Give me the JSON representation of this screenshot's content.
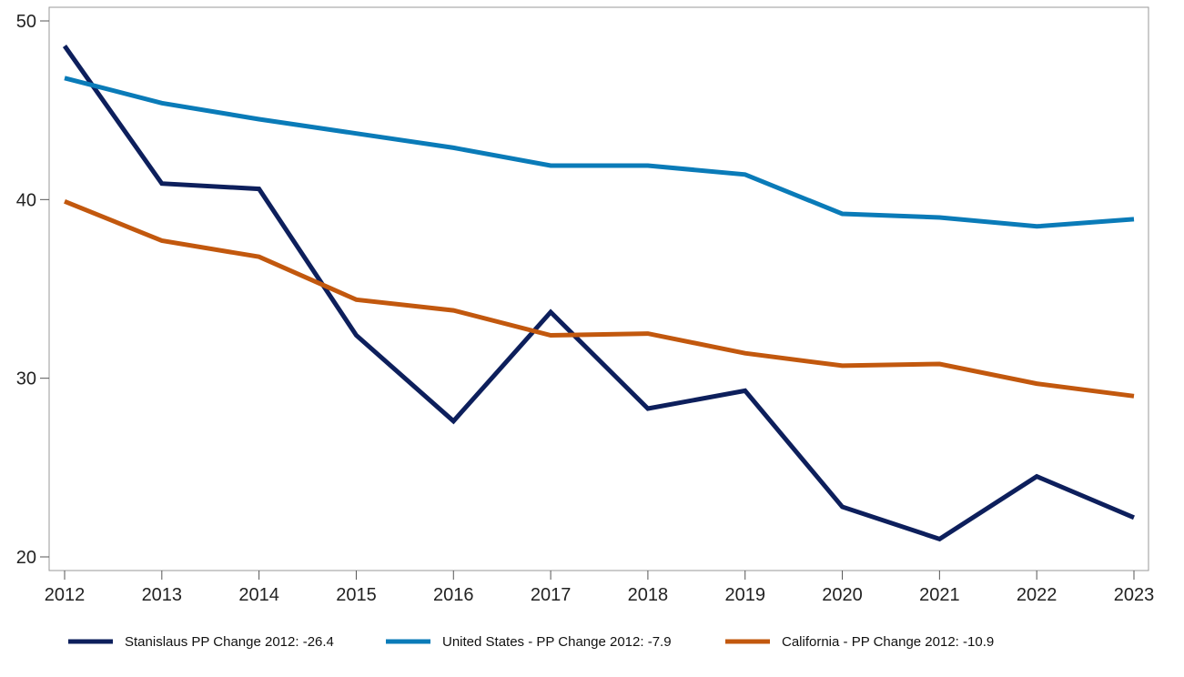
{
  "chart_data": {
    "type": "line",
    "title": "",
    "xlabel": "",
    "ylabel": "",
    "x": [
      2012,
      2013,
      2014,
      2015,
      2016,
      2017,
      2018,
      2019,
      2020,
      2021,
      2022,
      2023
    ],
    "xlim": [
      2012,
      2023
    ],
    "ylim": [
      20,
      50
    ],
    "yticks": [
      20,
      30,
      40,
      50
    ],
    "grid": false,
    "legend_position": "bottom",
    "series": [
      {
        "name": "Stanislaus PP Change 2012: -26.4",
        "color": "#0d1f5c",
        "values": [
          48.6,
          40.9,
          40.6,
          32.4,
          27.6,
          33.7,
          28.3,
          29.3,
          22.8,
          21.0,
          24.5,
          22.2
        ]
      },
      {
        "name": "United States - PP Change 2012: -7.9",
        "color": "#0a7bb8",
        "values": [
          46.8,
          45.4,
          44.5,
          43.7,
          42.9,
          41.9,
          41.9,
          41.4,
          39.2,
          39.0,
          38.5,
          38.9
        ]
      },
      {
        "name": "California - PP Change 2012: -10.9",
        "color": "#c2580e",
        "values": [
          39.9,
          37.7,
          36.8,
          34.4,
          33.8,
          32.4,
          32.5,
          31.4,
          30.7,
          30.8,
          29.7,
          29.0
        ]
      }
    ]
  }
}
